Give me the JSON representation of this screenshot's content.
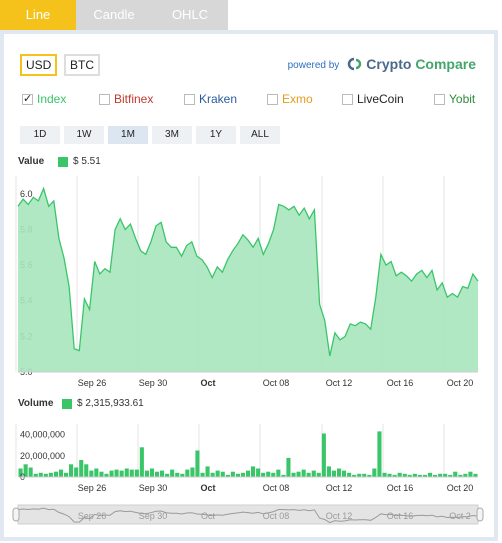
{
  "tabs": [
    {
      "label": "Line",
      "active": true
    },
    {
      "label": "Candle",
      "active": false
    },
    {
      "label": "OHLC",
      "active": false
    }
  ],
  "currencies": [
    {
      "label": "USD",
      "active": true
    },
    {
      "label": "BTC",
      "active": false
    }
  ],
  "powered": {
    "prefix": "powered by",
    "brand_a": "Crypto",
    "brand_b": "Compare"
  },
  "exchanges": [
    {
      "label": "Index",
      "checked": true,
      "color": "#3ac569"
    },
    {
      "label": "Bitfinex",
      "checked": false,
      "color": "#c0392b"
    },
    {
      "label": "Kraken",
      "checked": false,
      "color": "#2a5d9f"
    },
    {
      "label": "Exmo",
      "checked": false,
      "color": "#e69a1f"
    },
    {
      "label": "LiveCoin",
      "checked": false,
      "color": "#222222"
    },
    {
      "label": "Yobit",
      "checked": false,
      "color": "#2e8b3c"
    }
  ],
  "ranges": [
    {
      "label": "1D"
    },
    {
      "label": "1W"
    },
    {
      "label": "1M",
      "active": true
    },
    {
      "label": "3M"
    },
    {
      "label": "1Y"
    },
    {
      "label": "ALL"
    }
  ],
  "legend": {
    "value_label": "Value",
    "value_text": "$ 5.51",
    "volume_label": "Volume",
    "volume_text": "$ 2,315,933.61"
  },
  "chart_data": [
    {
      "type": "area",
      "ylim": [
        5.0,
        6.1
      ],
      "yticks": [
        "5.0",
        "5.2",
        "5.4",
        "5.6",
        "5.8",
        "6.0"
      ],
      "xticks": [
        {
          "label": "Sep 26",
          "bold": false
        },
        {
          "label": "Sep 30",
          "bold": false
        },
        {
          "label": "Oct",
          "bold": true
        },
        {
          "label": "Oct 08",
          "bold": false
        },
        {
          "label": "Oct 12",
          "bold": false
        },
        {
          "label": "Oct 16",
          "bold": false
        },
        {
          "label": "Oct 20",
          "bold": false
        }
      ],
      "color": "#3ac569",
      "values": [
        5.93,
        5.97,
        5.94,
        5.98,
        5.96,
        6.03,
        5.93,
        5.96,
        5.75,
        5.64,
        5.48,
        5.13,
        5.12,
        5.41,
        5.35,
        5.62,
        5.55,
        5.58,
        5.56,
        5.8,
        5.86,
        5.8,
        5.83,
        5.75,
        5.68,
        5.66,
        5.73,
        5.82,
        5.84,
        5.73,
        5.7,
        5.7,
        5.65,
        5.71,
        5.73,
        5.65,
        5.63,
        5.59,
        5.53,
        5.59,
        5.56,
        5.63,
        5.68,
        5.72,
        5.77,
        5.74,
        5.7,
        5.75,
        5.66,
        5.72,
        5.8,
        5.94,
        5.93,
        5.91,
        5.93,
        5.88,
        5.92,
        5.86,
        5.91,
        5.38,
        5.29,
        5.09,
        5.22,
        5.18,
        5.2,
        5.27,
        5.26,
        5.28,
        5.27,
        5.24,
        5.42,
        5.66,
        5.6,
        5.62,
        5.54,
        5.56,
        5.54,
        5.51,
        5.55,
        5.57,
        5.53,
        5.57,
        5.46,
        5.5,
        5.42,
        5.44,
        5.42,
        5.48,
        5.47,
        5.55,
        5.51
      ]
    },
    {
      "type": "bar",
      "ylim": [
        0,
        50000000
      ],
      "yticks": [
        "0",
        "20,000,000",
        "40,000,000"
      ],
      "xticks": [
        {
          "label": "Sep 26",
          "bold": false
        },
        {
          "label": "Sep 30",
          "bold": false
        },
        {
          "label": "Oct",
          "bold": true
        },
        {
          "label": "Oct 08",
          "bold": false
        },
        {
          "label": "Oct 12",
          "bold": false
        },
        {
          "label": "Oct 16",
          "bold": false
        },
        {
          "label": "Oct 20",
          "bold": false
        }
      ],
      "color": "#3ac569",
      "values": [
        8000000,
        12000000,
        9000000,
        3000000,
        4000000,
        3000000,
        4000000,
        5000000,
        7000000,
        4000000,
        12000000,
        9000000,
        16000000,
        12000000,
        6000000,
        8000000,
        5000000,
        3000000,
        6000000,
        7000000,
        6000000,
        8000000,
        7000000,
        7000000,
        28000000,
        6000000,
        8000000,
        5000000,
        6000000,
        3000000,
        7000000,
        4000000,
        3000000,
        7000000,
        9000000,
        25000000,
        4000000,
        10000000,
        4000000,
        6000000,
        5000000,
        2000000,
        5000000,
        3000000,
        4000000,
        6000000,
        10000000,
        8000000,
        4000000,
        5000000,
        4000000,
        7000000,
        2000000,
        18000000,
        4000000,
        5000000,
        7000000,
        4000000,
        6000000,
        4000000,
        41000000,
        10000000,
        6000000,
        8000000,
        6000000,
        4000000,
        2000000,
        3000000,
        3000000,
        2000000,
        8000000,
        43000000,
        4000000,
        3000000,
        2000000,
        4000000,
        3000000,
        2000000,
        3000000,
        2000000,
        2000000,
        4000000,
        2000000,
        3000000,
        3000000,
        2000000,
        5000000,
        2000000,
        3000000,
        5000000,
        3000000
      ]
    }
  ],
  "navigator": {
    "xticks": [
      "Sep 26",
      "Sep 30",
      "Oct",
      "Oct 08",
      "Oct 12",
      "Oct 16",
      "Oct 2"
    ]
  }
}
